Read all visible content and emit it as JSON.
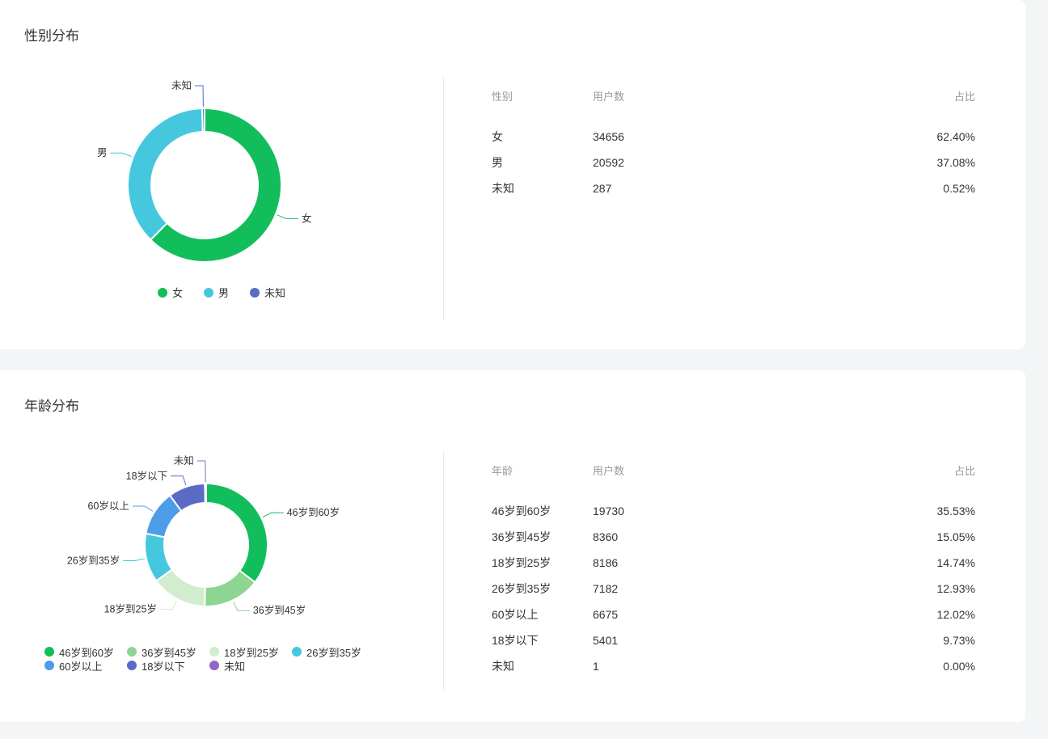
{
  "page": {
    "background": "#f4f5f7",
    "card_background": "#ffffff"
  },
  "panels": [
    {
      "title": "性别分布",
      "table": {
        "headers": [
          "性别",
          "用户数",
          "占比"
        ],
        "rows": [
          [
            "女",
            "34656",
            "62.40%"
          ],
          [
            "男",
            "20592",
            "37.08%"
          ],
          [
            "未知",
            "287",
            "0.52%"
          ]
        ]
      }
    },
    {
      "title": "年龄分布",
      "table": {
        "headers": [
          "年龄",
          "用户数",
          "占比"
        ],
        "rows": [
          [
            "46岁到60岁",
            "19730",
            "35.53%"
          ],
          [
            "36岁到45岁",
            "8360",
            "15.05%"
          ],
          [
            "18岁到25岁",
            "8186",
            "14.74%"
          ],
          [
            "26岁到35岁",
            "7182",
            "12.93%"
          ],
          [
            "60岁以上",
            "6675",
            "12.02%"
          ],
          [
            "18岁以下",
            "5401",
            "9.73%"
          ],
          [
            "未知",
            "1",
            "0.00%"
          ]
        ]
      }
    }
  ],
  "chart_data": [
    {
      "type": "pie",
      "subtype": "donut",
      "title": "性别分布",
      "categories": [
        "女",
        "男",
        "未知"
      ],
      "values": [
        34656,
        20592,
        287
      ],
      "percentages": [
        62.4,
        37.08,
        0.52
      ],
      "colors": [
        "#12BE5B",
        "#45C8DE",
        "#5A6BC5"
      ],
      "legend_position": "bottom-center",
      "labels_shown": true
    },
    {
      "type": "pie",
      "subtype": "donut",
      "title": "年龄分布",
      "categories": [
        "46岁到60岁",
        "36岁到45岁",
        "18岁到25岁",
        "26岁到35岁",
        "60岁以上",
        "18岁以下",
        "未知"
      ],
      "values": [
        19730,
        8360,
        8186,
        7182,
        6675,
        5401,
        1
      ],
      "percentages": [
        35.53,
        15.05,
        14.74,
        12.93,
        12.02,
        9.73,
        0.0
      ],
      "colors": [
        "#12BE5B",
        "#8ED492",
        "#D2ECD0",
        "#45C8DE",
        "#4D9DE8",
        "#5A6BC5",
        "#8E67C9"
      ],
      "legend_position": "bottom-left",
      "labels_shown": true
    }
  ]
}
